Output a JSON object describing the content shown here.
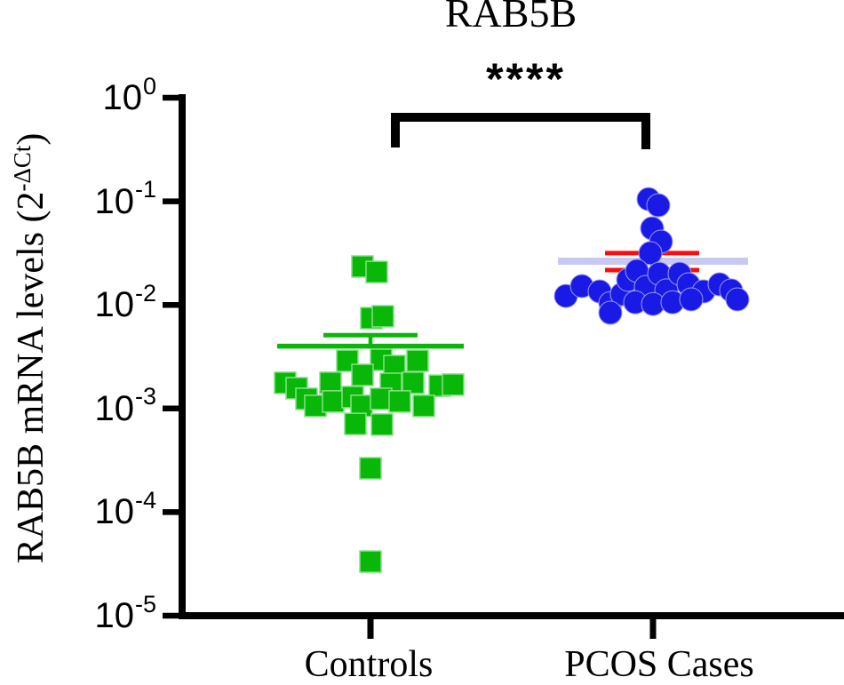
{
  "title": "RAB5B",
  "significance": {
    "label": "****",
    "comparison": "Controls vs PCOS Cases"
  },
  "axes": {
    "y": {
      "label": {
        "prefix": "RAB5B mRNA levels (2",
        "sup": "-ΔCt",
        "suffix": ")"
      },
      "scale": "log",
      "tick_exponents": [
        0,
        -1,
        -2,
        -3,
        -4,
        -5
      ],
      "tick_base": "10"
    },
    "x": {
      "categories": [
        "Controls",
        "PCOS Cases"
      ]
    }
  },
  "colors": {
    "controls": "#09b709",
    "controls_edge": "#86e186",
    "pcos": "#1a1ae6",
    "pcos_edge": "#9a9af2",
    "pcos_error": "#fb0d0d",
    "pcos_mean": "#c8c8f2",
    "axis": "#000000"
  },
  "chart_data": {
    "type": "scatter",
    "yscale": "log",
    "ylim": [
      1e-05,
      1
    ],
    "ylabel": "RAB5B mRNA levels (2^-DeltaCt)",
    "title": "RAB5B",
    "groups": [
      {
        "name": "Controls",
        "marker": "square",
        "color": "#09b709",
        "edge_color": "#86e186",
        "mean": 0.004,
        "sem_upper": 0.0051,
        "mean_color": "#09b709",
        "error_color": "#09b709",
        "points": [
          [
            -9,
            0.0235
          ],
          [
            7,
            0.0208
          ],
          [
            1,
            0.00746
          ],
          [
            14,
            0.00777
          ],
          [
            -26,
            0.00289
          ],
          [
            12,
            0.00295
          ],
          [
            53,
            0.00289
          ],
          [
            -9,
            0.00211
          ],
          [
            27,
            0.00257
          ],
          [
            -96,
            0.00177
          ],
          [
            -83,
            0.00157
          ],
          [
            -45,
            0.00177
          ],
          [
            23,
            0.00173
          ],
          [
            48,
            0.00177
          ],
          [
            78,
            0.00166
          ],
          [
            93,
            0.0017
          ],
          [
            -72,
            0.00124
          ],
          [
            -62,
            0.00106
          ],
          [
            -42,
            0.00117
          ],
          [
            -20,
            0.00129
          ],
          [
            -10,
            0.00106
          ],
          [
            12,
            0.00124
          ],
          [
            33,
            0.00117
          ],
          [
            60,
            0.00106
          ],
          [
            -17,
            0.00071
          ],
          [
            13,
            0.0007
          ],
          [
            0,
            0.000265
          ],
          [
            0,
            3.33e-05
          ]
        ]
      },
      {
        "name": "PCOS Cases",
        "marker": "circle",
        "color": "#1a1ae6",
        "edge_color": "#9a9af2",
        "mean": 0.0264,
        "sem_upper": 0.0316,
        "sem_lower": 0.0217,
        "mean_color": "#c8c8f2",
        "error_color": "#fb0d0d",
        "points": [
          [
            -5,
            0.105
          ],
          [
            6,
            0.0916
          ],
          [
            -1,
            0.0548
          ],
          [
            9,
            0.0408
          ],
          [
            -3,
            0.0316
          ],
          [
            -98,
            0.0122
          ],
          [
            -80,
            0.0152
          ],
          [
            -60,
            0.0135
          ],
          [
            -48,
            0.0104
          ],
          [
            -35,
            0.0127
          ],
          [
            -28,
            0.0175
          ],
          [
            -18,
            0.0213
          ],
          [
            -8,
            0.0149
          ],
          [
            7,
            0.02
          ],
          [
            15,
            0.0138
          ],
          [
            30,
            0.02
          ],
          [
            40,
            0.0158
          ],
          [
            57,
            0.0135
          ],
          [
            75,
            0.0158
          ],
          [
            88,
            0.0138
          ],
          [
            95,
            0.0113
          ],
          [
            -48,
            0.0084
          ],
          [
            -20,
            0.0106
          ],
          [
            0,
            0.0102
          ],
          [
            22,
            0.0106
          ],
          [
            43,
            0.0113
          ]
        ]
      }
    ],
    "annotations": {
      "bracket_label": "****",
      "bracket_groups": [
        0,
        1
      ]
    }
  }
}
